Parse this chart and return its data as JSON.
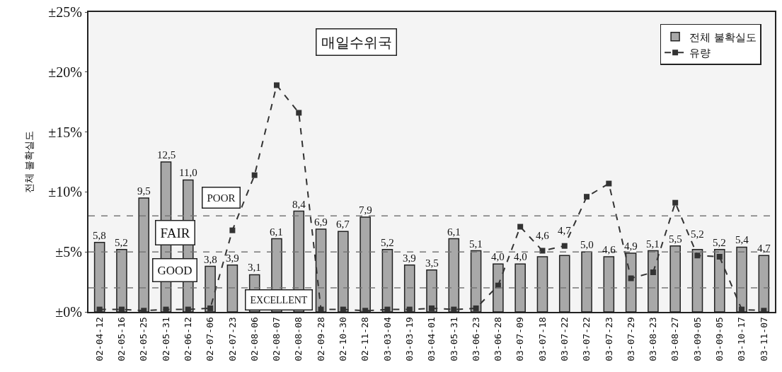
{
  "chart_data": {
    "type": "bar",
    "annotations": [
      "매일수위국",
      "POOR",
      "FAIR",
      "GOOD",
      "EXCELLENT"
    ],
    "ylabel": "전체 불확실도",
    "categories": [
      "02-04-12",
      "02-05-16",
      "02-05-25",
      "02-05-31",
      "02-06-12",
      "02-07-06",
      "02-07-23",
      "02-08-06",
      "02-08-07",
      "02-08-08",
      "02-09-28",
      "02-10-30",
      "02-11-28",
      "03-03-04",
      "03-03-19",
      "03-04-01",
      "03-05-31",
      "03-06-23",
      "03-06-28",
      "03-07-09",
      "03-07-18",
      "03-07-22",
      "03-07-22",
      "03-07-23",
      "03-07-29",
      "03-08-23",
      "03-08-27",
      "03-09-05",
      "03-09-05",
      "03-10-17",
      "03-11-07"
    ],
    "series": [
      {
        "name": "전체 불확실도",
        "color": "#a8a8a8",
        "values": [
          5.8,
          5.2,
          9.5,
          12.5,
          11.0,
          3.8,
          3.9,
          3.1,
          6.1,
          8.4,
          6.9,
          6.7,
          7.9,
          5.2,
          3.9,
          3.5,
          6.1,
          5.1,
          4.0,
          4.0,
          4.6,
          4.7,
          5.0,
          4.6,
          4.9,
          5.1,
          5.5,
          5.2,
          5.2,
          5.4,
          4.7
        ],
        "value_labels": [
          "5,8",
          "5,2",
          "9,5",
          "12,5",
          "11,0",
          "3,8",
          "3,9",
          "3,1",
          "6,1",
          "8,4",
          "6,9",
          "6,7",
          "7,9",
          "5,2",
          "3,9",
          "3,5",
          "6,1",
          "5,1",
          "4,0",
          "4,0",
          "4,6",
          "4,7",
          "5,0",
          "4,6",
          "4,9",
          "5,1",
          "5,5",
          "5,2",
          "5,2",
          "5,4",
          "4,7"
        ]
      },
      {
        "name": "유량",
        "type": "line",
        "color": "#333333",
        "marker": "square",
        "line_style": "dashed",
        "values": [
          0.2,
          0.2,
          0.1,
          0.2,
          0.2,
          0.3,
          6.8,
          11.4,
          18.9,
          16.6,
          0.2,
          0.2,
          0.1,
          0.2,
          0.2,
          0.3,
          0.2,
          0.3,
          2.2,
          7.1,
          5.1,
          5.5,
          9.6,
          10.7,
          2.8,
          3.3,
          9.1,
          4.7,
          4.6,
          0.2,
          0.1
        ]
      }
    ],
    "ylim": [
      0,
      25
    ],
    "yticks": [
      {
        "value": 0,
        "label": "±0%"
      },
      {
        "value": 5,
        "label": "±5%"
      },
      {
        "value": 10,
        "label": "±10%"
      },
      {
        "value": 15,
        "label": "±15%"
      },
      {
        "value": 20,
        "label": "±20%"
      },
      {
        "value": 25,
        "label": "±25%"
      }
    ],
    "ref_lines": [
      {
        "axis": "y",
        "value": 8,
        "color": "#777777",
        "line_style": "dashed"
      },
      {
        "axis": "y",
        "value": 5,
        "color": "#777777",
        "line_style": "dashed"
      },
      {
        "axis": "y",
        "value": 2,
        "color": "#777777",
        "line_style": "dashed"
      }
    ],
    "grid": false,
    "legend": "top right"
  }
}
